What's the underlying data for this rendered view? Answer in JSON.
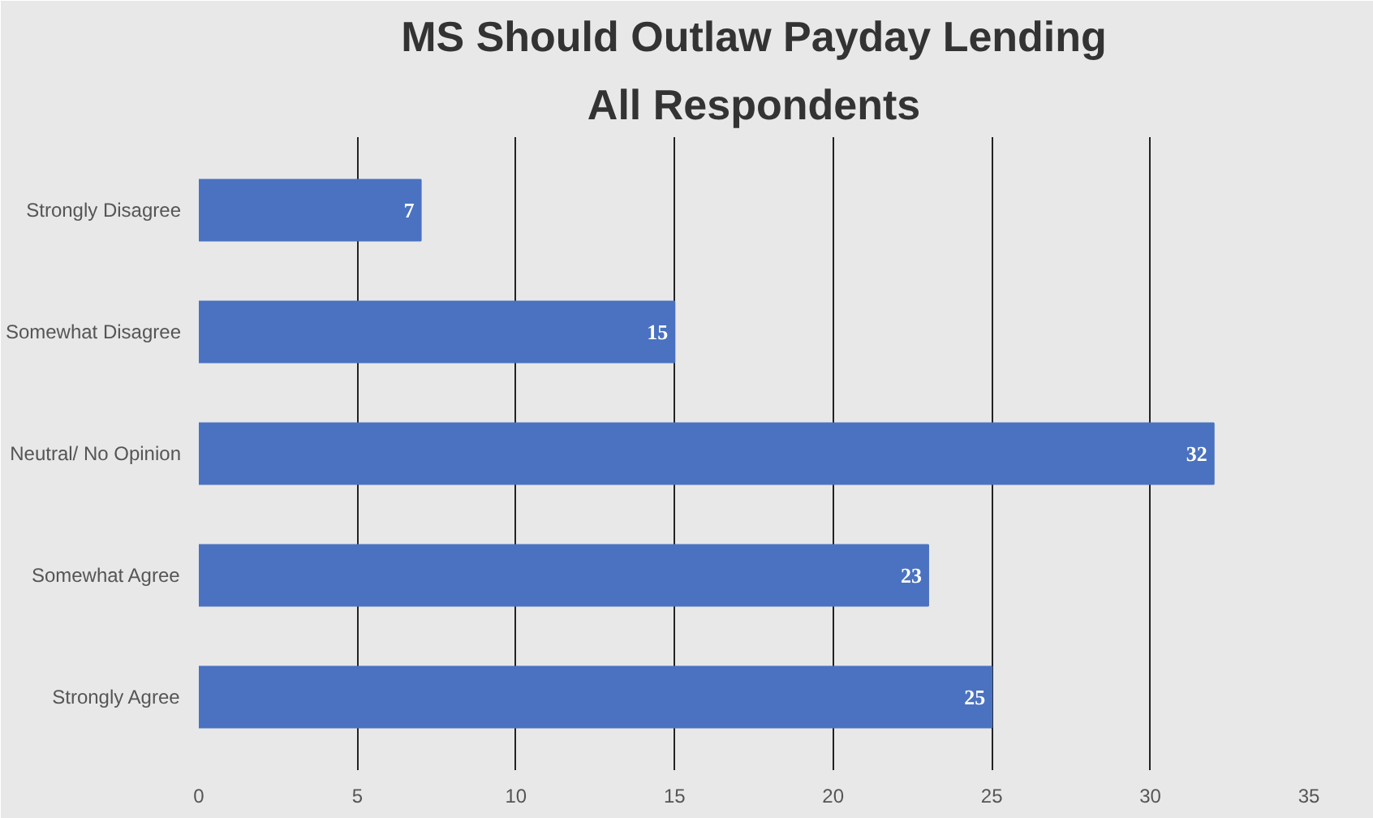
{
  "chart_data": {
    "type": "bar",
    "orientation": "horizontal",
    "title": "MS Should Outlaw Payday Lending",
    "subtitle": "All Respondents",
    "categories": [
      "Strongly Disagree",
      "Somewhat Disagree",
      "Neutral/ No Opinion",
      "Somewhat Agree",
      "Strongly Agree"
    ],
    "values": [
      7,
      15,
      32,
      23,
      25
    ],
    "color": "#4a72c0",
    "xlim": [
      0,
      35
    ],
    "xticks": [
      0,
      5,
      10,
      15,
      20,
      25,
      30,
      35
    ],
    "grid": "x",
    "data_labels": true
  }
}
